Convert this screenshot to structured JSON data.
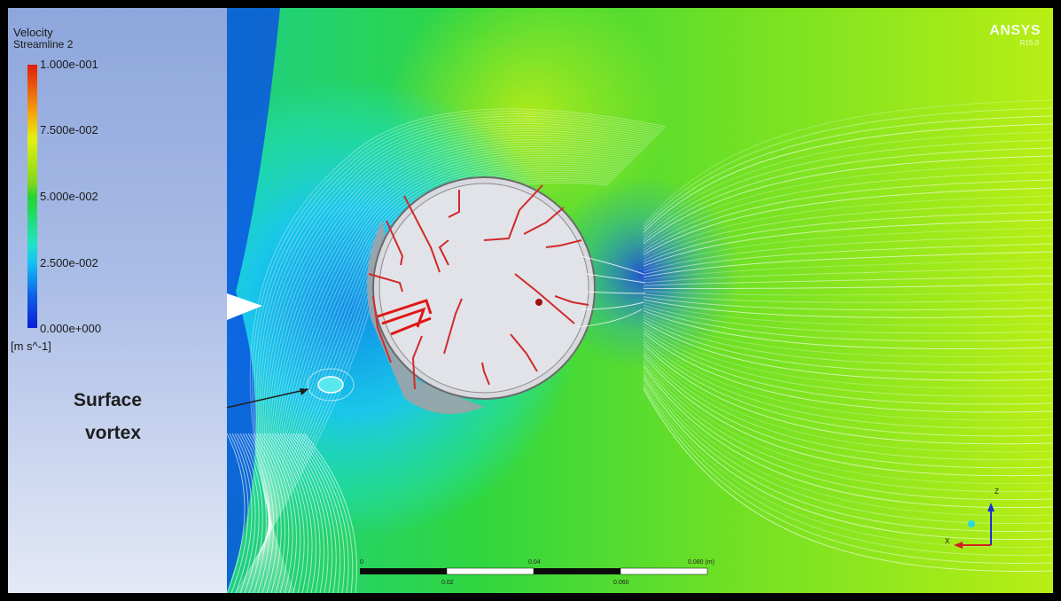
{
  "legend": {
    "title": "Velocity",
    "subtitle": "Streamline 2",
    "ticks": [
      "1.000e-001",
      "7.500e-002",
      "5.000e-002",
      "2.500e-002",
      "0.000e+000"
    ],
    "unit": "[m s^-1]",
    "colors": {
      "max": "#e21b0b",
      "high": "#e5f00d",
      "mid": "#27d42f",
      "low": "#16c3f3",
      "min": "#0a1fd6"
    }
  },
  "annotation": {
    "line1": "Surface",
    "line2": "vortex"
  },
  "logo": {
    "brand": "ANSYS",
    "version": "R15.0"
  },
  "scale_bar": {
    "labels_top": [
      "0",
      "0.04",
      "0.080 (m)"
    ],
    "labels_bottom": [
      "0.02",
      "0.060"
    ]
  },
  "axes_triad": {
    "z_label": "Z",
    "x_label": "X"
  }
}
